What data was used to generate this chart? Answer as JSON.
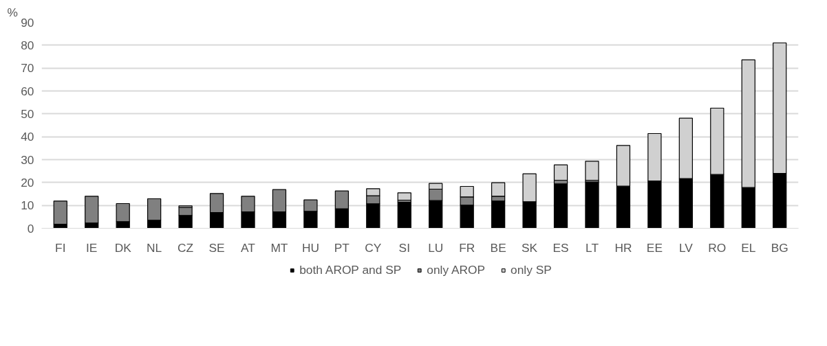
{
  "chart_data": {
    "type": "bar",
    "stacked": true,
    "ylabel": "%",
    "categories": [
      "FI",
      "IE",
      "DK",
      "NL",
      "CZ",
      "SE",
      "AT",
      "MT",
      "HU",
      "PT",
      "CY",
      "SI",
      "LU",
      "FR",
      "BE",
      "SK",
      "ES",
      "LT",
      "HR",
      "EE",
      "LV",
      "RO",
      "EL",
      "BG"
    ],
    "series": [
      {
        "name": "both AROP and SP",
        "color": "#000000",
        "values": [
          1.8,
          2.3,
          2.9,
          3.5,
          5.6,
          6.9,
          7.2,
          7.2,
          7.4,
          8.5,
          10.7,
          11.4,
          12.1,
          10.1,
          11.9,
          11.6,
          19.4,
          20.2,
          18.4,
          20.7,
          21.7,
          23.5,
          17.8,
          24.0
        ]
      },
      {
        "name": "only AROP",
        "color": "#808080",
        "values": [
          10.1,
          11.7,
          7.9,
          9.4,
          3.5,
          8.3,
          6.8,
          9.7,
          5.0,
          7.8,
          3.5,
          0.9,
          5.0,
          3.6,
          2.1,
          null,
          1.6,
          0.8,
          null,
          null,
          null,
          null,
          null,
          null
        ]
      },
      {
        "name": "only SP",
        "color": "#d0d0d0",
        "values": [
          null,
          null,
          null,
          null,
          0.7,
          null,
          null,
          null,
          null,
          null,
          3.1,
          3.2,
          2.5,
          4.6,
          5.9,
          12.2,
          6.7,
          8.3,
          17.8,
          20.7,
          26.4,
          29.0,
          55.8,
          57.0
        ]
      }
    ],
    "ylim": [
      0,
      90
    ],
    "yticks": [
      0,
      10,
      20,
      30,
      40,
      50,
      60,
      70,
      80,
      90
    ],
    "grid": "y",
    "legend": "bottom"
  }
}
